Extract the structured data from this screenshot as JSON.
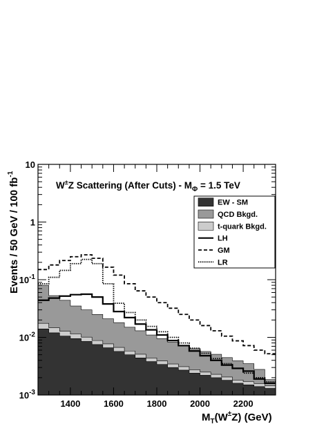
{
  "chart_data": {
    "type": "area",
    "title_parts": [
      "W",
      "±",
      "Z Scattering (After Cuts) - M",
      "Φ",
      " = 1.5 TeV"
    ],
    "xlabel_parts": [
      "M",
      "T",
      "(W",
      "±",
      "Z) (GeV)"
    ],
    "ylabel_parts": [
      "Events / 50 GeV / 100 fb",
      "-1"
    ],
    "x_range": [
      1250,
      2350
    ],
    "y_range": [
      0.001,
      10
    ],
    "y_scale": "log",
    "x_ticks": [
      {
        "value": 1400,
        "label": "1400"
      },
      {
        "value": 1600,
        "label": "1600"
      },
      {
        "value": 1800,
        "label": "1800"
      },
      {
        "value": 2000,
        "label": "2000"
      },
      {
        "value": 2200,
        "label": "2200"
      }
    ],
    "y_ticks": [
      {
        "value": 0.001,
        "base": "10",
        "exp": "-3"
      },
      {
        "value": 0.01,
        "base": "10",
        "exp": "-2"
      },
      {
        "value": 0.1,
        "base": "10",
        "exp": "-1"
      },
      {
        "value": 1,
        "base": "1",
        "exp": ""
      },
      {
        "value": 10,
        "base": "10",
        "exp": ""
      }
    ],
    "bin_edges": [
      1250,
      1300,
      1350,
      1400,
      1450,
      1500,
      1550,
      1600,
      1650,
      1700,
      1750,
      1800,
      1850,
      1900,
      1950,
      2000,
      2050,
      2100,
      2150,
      2200,
      2250,
      2300,
      2350
    ],
    "stacked": [
      {
        "name": "EW - SM",
        "color": "#333333",
        "values": [
          0.014,
          0.012,
          0.0105,
          0.0095,
          0.0085,
          0.0075,
          0.0066,
          0.0057,
          0.005,
          0.0044,
          0.0038,
          0.0034,
          0.003,
          0.0027,
          0.0024,
          0.0022,
          0.002,
          0.0018,
          0.0016,
          0.0015,
          0.0014,
          0.0013
        ]
      },
      {
        "name": "t-quark Bkgd.",
        "color": "#cccccc",
        "values": [
          0.0035,
          0.0027,
          0.0023,
          0.0019,
          0.0016,
          0.0013,
          0.0011,
          0.001,
          0.0008,
          0.0007,
          0.0006,
          0.0005,
          0.00045,
          0.0004,
          0.00035,
          0.0003,
          0.00028,
          0.00025,
          0.00022,
          0.0002,
          0.00018,
          0.00016
        ]
      },
      {
        "name": "QCD Bkgd.",
        "color": "#999999",
        "values": [
          0.0625,
          0.0383,
          0.0312,
          0.0236,
          0.0199,
          0.0162,
          0.0133,
          0.0113,
          0.0092,
          0.0079,
          0.0066,
          0.0056,
          0.0048,
          0.0042,
          0.0036,
          0.0032,
          0.0028,
          0.0024,
          0.0021,
          0.0018,
          0.0012,
          0.0004
        ]
      }
    ],
    "lines": [
      {
        "name": "LH",
        "style": "solid",
        "values": [
          0.044,
          0.048,
          0.052,
          0.055,
          0.056,
          0.05,
          0.038,
          0.028,
          0.022,
          0.017,
          0.0135,
          0.011,
          0.0088,
          0.0072,
          0.0058,
          0.0048,
          0.004,
          0.0033,
          0.0029,
          0.0026,
          0.0019,
          0.0016
        ]
      },
      {
        "name": "GM",
        "style": "dashed",
        "values": [
          0.15,
          0.18,
          0.215,
          0.25,
          0.27,
          0.235,
          0.165,
          0.12,
          0.085,
          0.064,
          0.05,
          0.04,
          0.032,
          0.025,
          0.02,
          0.016,
          0.013,
          0.0105,
          0.0087,
          0.0072,
          0.006,
          0.0052
        ]
      },
      {
        "name": "LR",
        "style": "dotted",
        "values": [
          0.085,
          0.11,
          0.145,
          0.19,
          0.225,
          0.19,
          0.085,
          0.039,
          0.027,
          0.02,
          0.0155,
          0.0125,
          0.01,
          0.008,
          0.0065,
          0.0053,
          0.0043,
          0.0035,
          0.0029,
          0.0024,
          0.002,
          0.0017
        ]
      }
    ],
    "legend": {
      "position": "top-right",
      "entries": [
        {
          "label": "EW - SM",
          "kind": "fill",
          "color": "#333333"
        },
        {
          "label": "QCD Bkgd.",
          "kind": "fill",
          "color": "#999999"
        },
        {
          "label": "t-quark Bkgd.",
          "kind": "fill",
          "color": "#cccccc"
        },
        {
          "label": "LH",
          "kind": "line",
          "style": "solid"
        },
        {
          "label": "GM",
          "kind": "line",
          "style": "dashed"
        },
        {
          "label": "LR",
          "kind": "line",
          "style": "dotted"
        }
      ]
    }
  }
}
